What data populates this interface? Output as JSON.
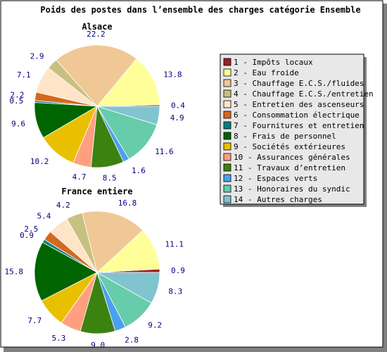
{
  "colors": {
    "frame_border": "#000000",
    "shadow": "#808080",
    "legend_bg": "#e8e8e8",
    "label": "#000080"
  },
  "chart_data": {
    "type": "pie",
    "title": "Poids des postes dans l’ensemble des charges catégorie Ensemble",
    "legend_position": "right",
    "categories": [
      "1 - Impôts locaux",
      "2 - Eau froide",
      "3 - Chauffage E.C.S./fluides",
      "4 - Chauffage E.C.S./entretien",
      "5 - Entretien des ascenseurs",
      "6 - Consommation électrique",
      "7 - Fournitures et entretien",
      "8 - Frais de personnel",
      "9 - Sociétés extérieures",
      "10 - Assurances générales",
      "11 - Travaux d’entretien",
      "12 - Espaces verts",
      "13 - Honoraires du syndic",
      "14 - Autres charges"
    ],
    "colors": [
      "#9b2226",
      "#ffff99",
      "#f0c896",
      "#c8c080",
      "#ffe4c8",
      "#d2691e",
      "#008080",
      "#006400",
      "#e8c000",
      "#ff9f80",
      "#3c8210",
      "#4aa0f0",
      "#66ccaa",
      "#80c4d0"
    ],
    "pies": [
      {
        "name": "Alsace",
        "values": [
          0.4,
          13.8,
          22.2,
          2.9,
          7.1,
          2.2,
          0.5,
          9.6,
          10.2,
          4.7,
          8.5,
          1.6,
          11.6,
          4.9
        ],
        "labels": [
          "0.4",
          "13.8",
          "22.2",
          "2.9",
          "7.1",
          "2.2",
          "0.5",
          "9.6",
          "10.2",
          "4.7",
          "8.5",
          "1.6",
          "11.6",
          "4.9"
        ]
      },
      {
        "name": "France entiere",
        "values": [
          0.9,
          11.1,
          16.8,
          4.2,
          5.4,
          2.5,
          0.9,
          15.8,
          7.7,
          5.3,
          9.0,
          2.8,
          9.2,
          8.3
        ],
        "labels": [
          "0.9",
          "11.1",
          "16.8",
          "4.2",
          "5.4",
          "2.5",
          "0.9",
          "15.8",
          "7.7",
          "5.3",
          "9.0",
          "2.8",
          "9.2",
          "8.3"
        ]
      }
    ]
  }
}
